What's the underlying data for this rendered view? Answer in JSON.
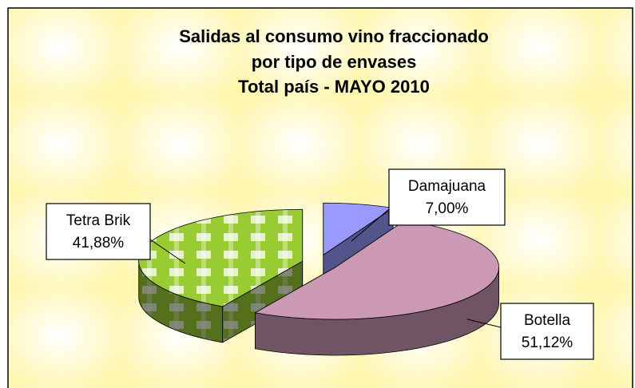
{
  "chart_data": {
    "type": "pie3d",
    "title": [
      "Salidas al consumo vino fraccionado",
      "por tipo de envases",
      "Total país - MAYO 2010"
    ],
    "categories": [
      "Damajuana",
      "Botella",
      "Tetra Brik"
    ],
    "values": [
      7.0,
      51.12,
      41.88
    ],
    "value_labels": [
      "7,00%",
      "51,12%",
      "41,88%"
    ],
    "colors": [
      "#9999ff",
      "#cc99b4",
      "#99cc33"
    ]
  }
}
